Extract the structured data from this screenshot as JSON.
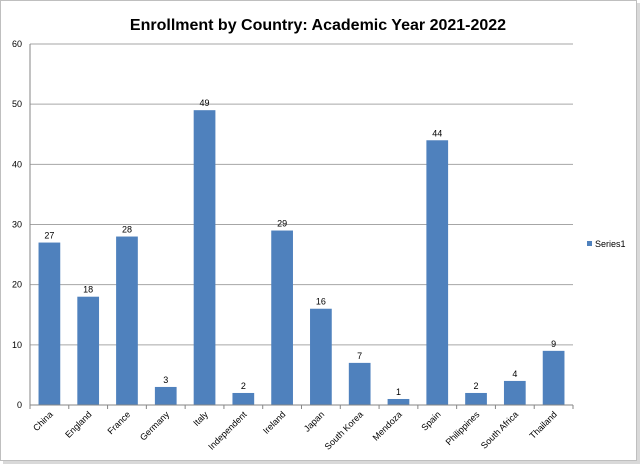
{
  "chart_data": {
    "type": "bar",
    "title": "Enrollment by Country: Academic Year 2021-2022",
    "xlabel": "",
    "ylabel": "",
    "categories": [
      "China",
      "England",
      "France",
      "Germany",
      "Italy",
      "Independent",
      "Ireland",
      "Japan",
      "South Korea",
      "Mendoza",
      "Spain",
      "Philippines",
      "South Africa",
      "Thailand"
    ],
    "series": [
      {
        "name": "Series1",
        "values": [
          27,
          18,
          28,
          3,
          49,
          2,
          29,
          16,
          7,
          1,
          44,
          2,
          4,
          9
        ]
      }
    ],
    "ylim": [
      0,
      60
    ],
    "yticks": [
      0,
      10,
      20,
      30,
      40,
      50,
      60
    ],
    "grid": true,
    "data_labels": true,
    "legend_position": "right",
    "bar_color": "#4f81bd"
  }
}
